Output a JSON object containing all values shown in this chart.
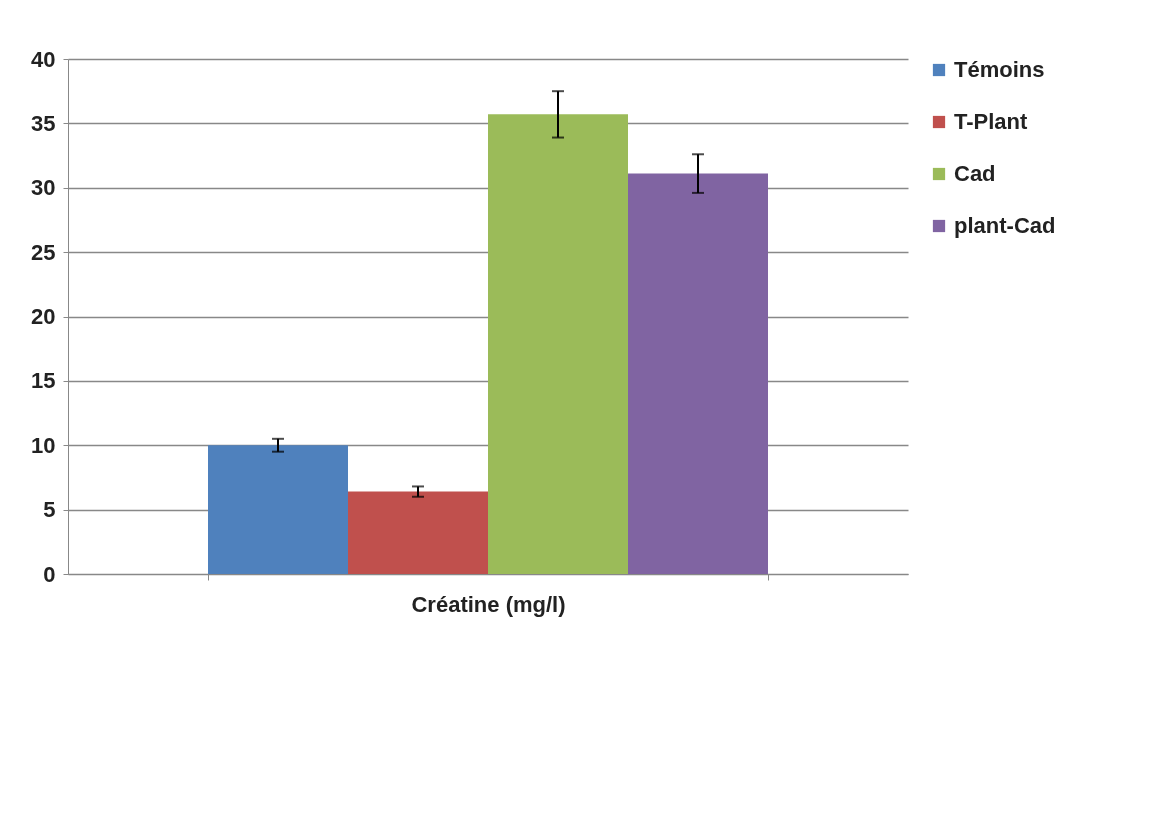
{
  "chart_data": {
    "type": "bar",
    "categories": [
      "Créatine (mg/l)"
    ],
    "series": [
      {
        "name": "Témoins",
        "color": "#4f81bd",
        "values": [
          10.0
        ],
        "errors": [
          0.5
        ]
      },
      {
        "name": "T-Plant",
        "color": "#c0504d",
        "values": [
          6.4
        ],
        "errors": [
          0.4
        ]
      },
      {
        "name": "Cad",
        "color": "#9bbb59",
        "values": [
          35.7
        ],
        "errors": [
          1.8
        ]
      },
      {
        "name": "plant-Cad",
        "color": "#8064a2",
        "values": [
          31.1
        ],
        "errors": [
          1.5
        ]
      }
    ],
    "ylim": [
      0,
      40
    ],
    "yticks": [
      0,
      5,
      10,
      15,
      20,
      25,
      30,
      35,
      40
    ],
    "grid": "y",
    "legend": "right"
  }
}
